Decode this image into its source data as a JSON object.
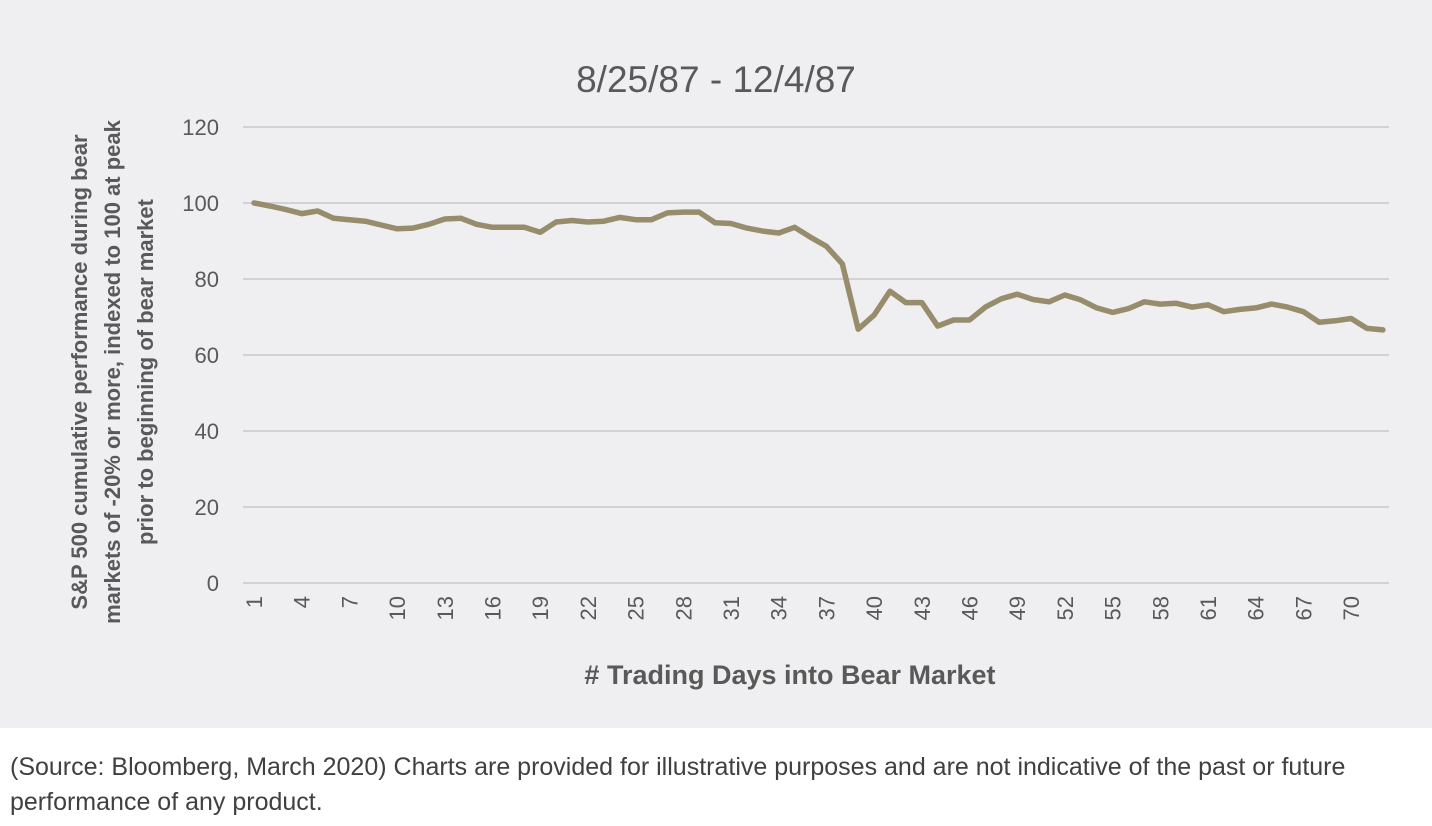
{
  "chart_data": {
    "type": "line",
    "title": "8/25/87 - 12/4/87",
    "xlabel": "# Trading Days into Bear Market",
    "ylabel_lines": [
      "S&P 500 cumulative performance during bear",
      "markets of -20% or more, indexed to 100 at peak",
      "prior to beginning of bear market"
    ],
    "ylim": [
      0,
      120
    ],
    "yticks": [
      0,
      20,
      40,
      60,
      80,
      100,
      120
    ],
    "xlim": [
      1,
      72
    ],
    "xticks": [
      1,
      4,
      7,
      10,
      13,
      16,
      19,
      22,
      25,
      28,
      31,
      34,
      37,
      40,
      43,
      46,
      49,
      52,
      55,
      58,
      61,
      64,
      67,
      70
    ],
    "grid": true,
    "legend": "none",
    "line_color": "#978d6d",
    "series": [
      {
        "x": [
          1,
          2,
          3,
          4,
          5,
          6,
          7,
          8,
          9,
          10,
          11,
          12,
          13,
          14,
          15,
          16,
          17,
          18,
          19,
          20,
          21,
          22,
          23,
          24,
          25,
          26,
          27,
          28,
          29,
          30,
          31,
          32,
          33,
          34,
          35,
          36,
          37,
          38,
          39,
          40,
          41,
          42,
          43,
          44,
          45,
          46,
          47,
          48,
          49,
          50,
          51,
          52,
          53,
          54,
          55,
          56,
          57,
          58,
          59,
          60,
          61,
          62,
          63,
          64,
          65,
          66,
          67,
          68,
          69,
          70,
          71,
          72
        ],
        "values": [
          100,
          99.2,
          98.3,
          97.2,
          97.9,
          96.0,
          95.6,
          95.2,
          94.2,
          93.2,
          93.4,
          94.4,
          95.8,
          96.0,
          94.4,
          93.6,
          93.6,
          93.6,
          92.3,
          95.0,
          95.4,
          95.0,
          95.2,
          96.2,
          95.6,
          95.6,
          97.4,
          97.6,
          97.6,
          94.8,
          94.6,
          93.4,
          92.6,
          92.1,
          93.6,
          91.0,
          88.6,
          84.0,
          66.8,
          70.5,
          76.8,
          73.8,
          73.8,
          67.6,
          69.2,
          69.2,
          72.6,
          74.8,
          76.0,
          74.6,
          74.0,
          75.8,
          74.5,
          72.4,
          71.2,
          72.2,
          74.0,
          73.4,
          73.6,
          72.6,
          73.2,
          71.4,
          72.0,
          72.4,
          73.4,
          72.6,
          71.4,
          68.6,
          69.0,
          69.6,
          67.0,
          66.6
        ]
      }
    ]
  },
  "caption": "(Source: Bloomberg, March 2020) Charts are provided for illustrative purposes and are not indicative of the past or future performance of any product."
}
